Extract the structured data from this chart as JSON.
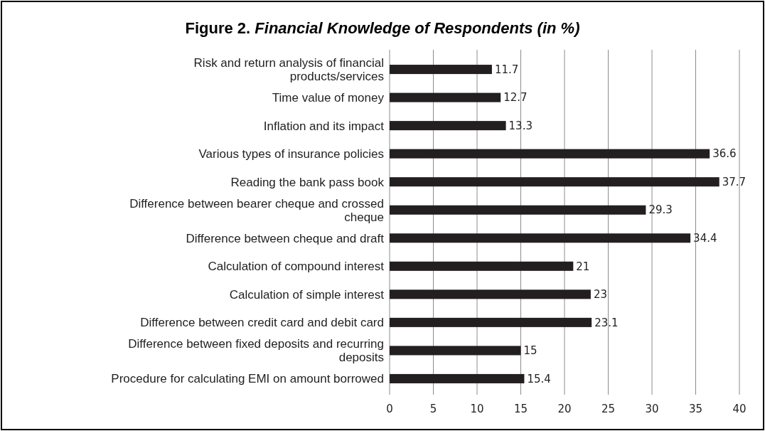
{
  "chart_data": {
    "type": "bar",
    "orientation": "horizontal",
    "title": "Figure 2. Financial Knowledge of Respondents (in %)",
    "categories": [
      "Risk and return analysis of financial products/services",
      "Time value of money",
      "Inflation and its impact",
      "Various types of insurance policies",
      "Reading the bank pass book",
      "Difference between bearer cheque and crossed cheque",
      "Difference between cheque and draft",
      "Calculation of compound interest",
      "Calculation of simple interest",
      "Difference between credit card and debit card",
      "Difference between fixed deposits and recurring deposits",
      "Procedure for calculating EMI on amount borrowed"
    ],
    "values": [
      11.7,
      12.7,
      13.3,
      36.6,
      37.7,
      29.3,
      34.4,
      21,
      23,
      23.1,
      15,
      15.4
    ],
    "color": "#231f20",
    "xlim": [
      0,
      40
    ],
    "xticks": [
      0,
      5,
      10,
      15,
      20,
      25,
      30,
      35,
      40
    ],
    "grid": "x",
    "data_labels": true
  }
}
